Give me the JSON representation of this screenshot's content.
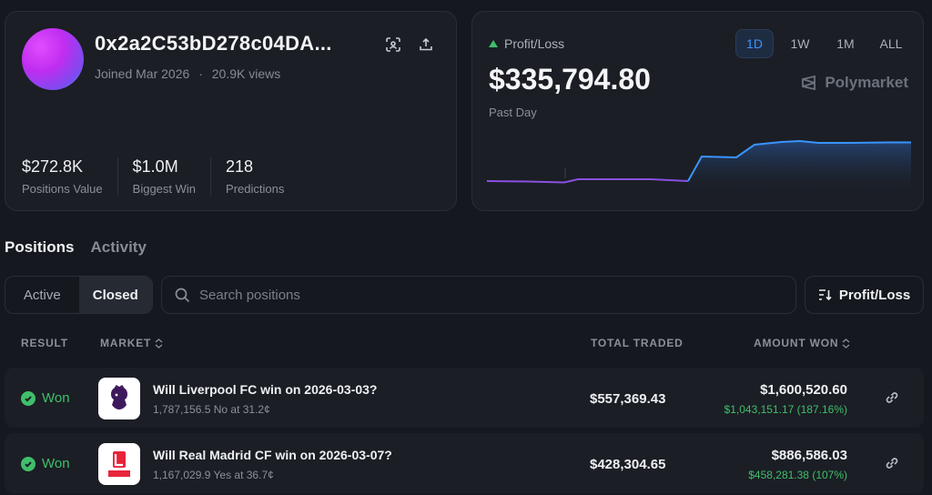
{
  "profile": {
    "address": "0x2a2C53bD278c04DA...",
    "joined": "Joined Mar 2026",
    "separator": "·",
    "views": "20.9K views",
    "stats": [
      {
        "value": "$272.8K",
        "label": "Positions Value"
      },
      {
        "value": "$1.0M",
        "label": "Biggest Win"
      },
      {
        "value": "218",
        "label": "Predictions"
      }
    ]
  },
  "pnl": {
    "label": "Profit/Loss",
    "value": "$335,794.80",
    "period": "Past Day",
    "brand": "Polymarket",
    "ranges": [
      "1D",
      "1W",
      "1M",
      "ALL"
    ],
    "active_range": "1D",
    "accent_up": "#3fbf6a",
    "line_before": "#8a4fe0",
    "line_after": "#3a94ff"
  },
  "tabs": {
    "positions": "Positions",
    "activity": "Activity"
  },
  "filters": {
    "active": "Active",
    "closed": "Closed"
  },
  "search": {
    "placeholder": "Search positions"
  },
  "sort": {
    "label": "Profit/Loss"
  },
  "table": {
    "headers": {
      "result": "RESULT",
      "market": "MARKET",
      "traded": "TOTAL TRADED",
      "won": "AMOUNT WON"
    },
    "rows": [
      {
        "result": "Won",
        "title": "Will Liverpool FC win on 2026-03-03?",
        "sub": "1,787,156.5 No at 31.2¢",
        "traded": "$557,369.43",
        "won": "$1,600,520.60",
        "pnl": "$1,043,151.17 (187.16%)",
        "logo": "premier-league-logo"
      },
      {
        "result": "Won",
        "title": "Will Real Madrid CF win on 2026-03-07?",
        "sub": "1,167,029.9 Yes at 36.7¢",
        "traded": "$428,304.65",
        "won": "$886,586.03",
        "pnl": "$458,281.38 (107%)",
        "logo": "laliga-logo"
      }
    ]
  }
}
